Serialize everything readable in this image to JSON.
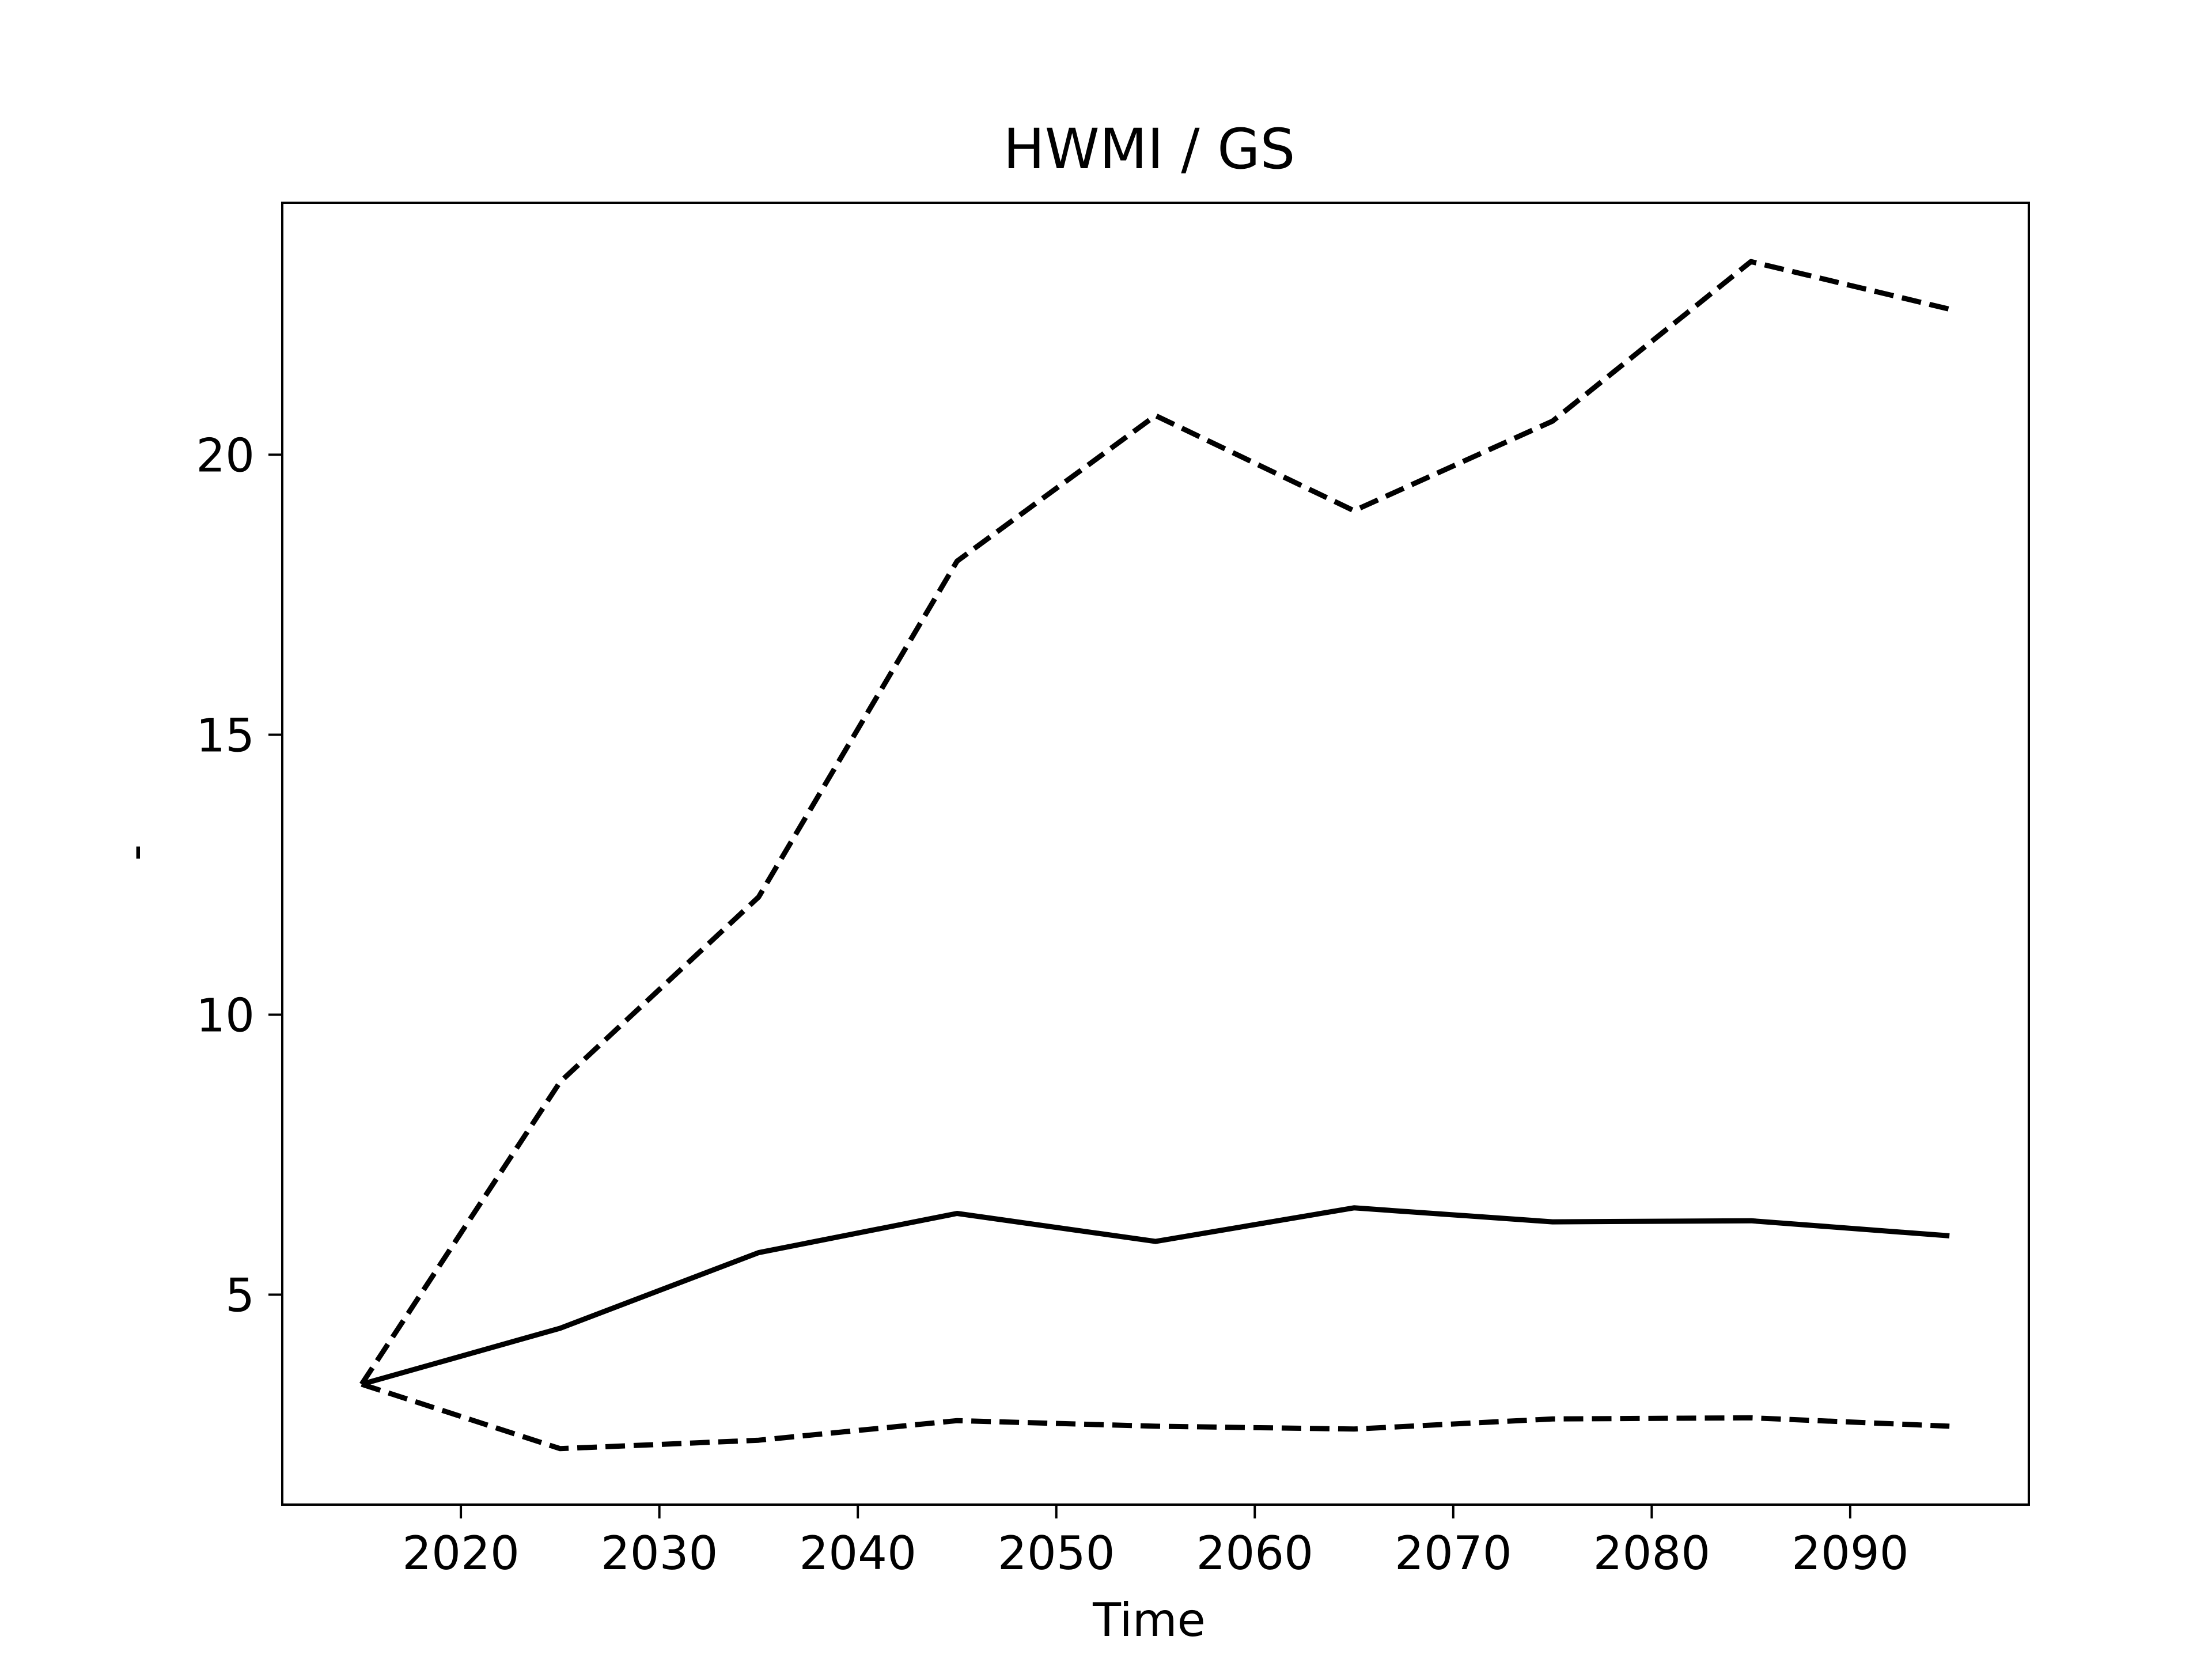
{
  "chart_data": {
    "type": "line",
    "title": "HWMI / GS",
    "xlabel": "Time",
    "ylabel": "-",
    "x": [
      2015,
      2025,
      2035,
      2045,
      2055,
      2065,
      2075,
      2085,
      2095
    ],
    "series": [
      {
        "style": "solid",
        "color": "#000000",
        "values": [
          3.4,
          4.4,
          5.75,
          6.45,
          5.95,
          6.55,
          6.3,
          6.32,
          6.05
        ]
      },
      {
        "style": "dashed",
        "color": "#000000",
        "values": [
          3.4,
          8.8,
          12.1,
          18.1,
          20.7,
          19.0,
          20.6,
          23.45,
          22.6
        ]
      },
      {
        "style": "dashed",
        "color": "#000000",
        "values": [
          3.4,
          2.25,
          2.4,
          2.75,
          2.65,
          2.6,
          2.78,
          2.8,
          2.65
        ]
      }
    ],
    "xlim": [
      2011,
      2099
    ],
    "ylim": [
      1.25,
      24.5
    ],
    "xticks": [
      2020,
      2030,
      2040,
      2050,
      2060,
      2070,
      2080,
      2090
    ],
    "xtick_labels": [
      "2020",
      "2030",
      "2040",
      "2050",
      "2060",
      "2070",
      "2080",
      "2090"
    ],
    "yticks": [
      5,
      10,
      15,
      20
    ],
    "ytick_labels": [
      "5",
      "10",
      "15",
      "20"
    ],
    "grid": false,
    "legend": "none"
  }
}
